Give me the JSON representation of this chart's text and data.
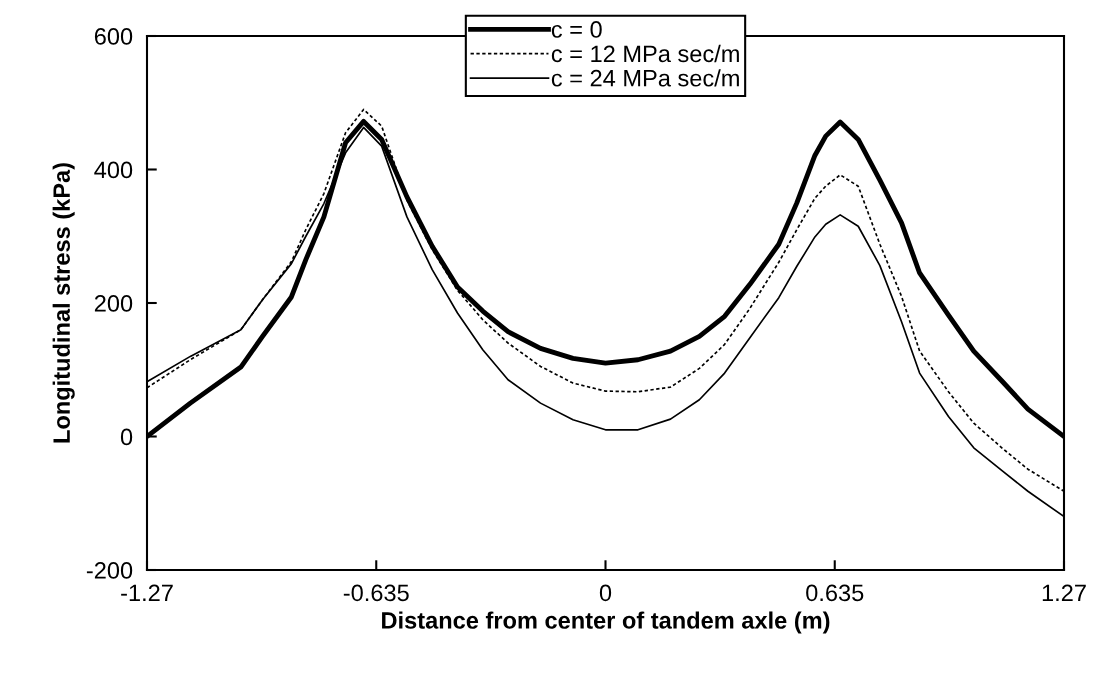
{
  "chart_data": {
    "type": "line",
    "xlabel": "Distance from center of tandem axle (m)",
    "ylabel": "Longitudinal stress (kPa)",
    "x": [
      -1.27,
      -1.15,
      -1.01,
      -0.95,
      -0.87,
      -0.83,
      -0.78,
      -0.72,
      -0.67,
      -0.62,
      -0.55,
      -0.48,
      -0.41,
      -0.34,
      -0.27,
      -0.18,
      -0.09,
      0,
      0.09,
      0.18,
      0.26,
      0.33,
      0.4,
      0.48,
      0.53,
      0.58,
      0.61,
      0.65,
      0.7,
      0.76,
      0.82,
      0.87,
      0.95,
      1.02,
      1.1,
      1.17,
      1.27
    ],
    "series": [
      {
        "name": "c = 0",
        "color": "#000000",
        "line_style": "solid",
        "values": [
          0,
          50,
          104,
          150,
          209,
          265,
          329,
          440,
          472,
          445,
          359,
          285,
          224,
          188,
          157,
          132,
          117,
          110,
          115,
          128,
          150,
          180,
          228,
          288,
          350,
          421,
          450,
          471,
          445,
          384,
          320,
          245,
          182,
          128,
          82,
          41,
          0
        ]
      },
      {
        "name": "c = 12 MPa sec/m",
        "color": "#000000",
        "line_style": "dotted",
        "values": [
          73,
          115,
          160,
          205,
          262,
          310,
          364,
          455,
          490,
          465,
          354,
          280,
          219,
          175,
          140,
          105,
          80,
          68,
          67,
          74,
          102,
          138,
          192,
          261,
          310,
          357,
          375,
          392,
          375,
          288,
          210,
          128,
          67,
          20,
          -18,
          -49,
          -82
        ]
      },
      {
        "name": "c = 24 MPa sec/m",
        "color": "#000000",
        "line_style": "solid",
        "values": [
          82,
          120,
          160,
          205,
          259,
          300,
          349,
          425,
          463,
          435,
          329,
          250,
          185,
          130,
          85,
          50,
          25,
          10,
          10,
          26,
          55,
          95,
          148,
          208,
          255,
          299,
          318,
          332,
          315,
          256,
          172,
          95,
          30,
          -17,
          -52,
          -82,
          -120
        ]
      }
    ],
    "xlim": [
      -1.27,
      1.27
    ],
    "xticks": [
      -1.27,
      -0.635,
      0,
      0.635,
      1.27
    ],
    "ylim": [
      -200,
      600
    ],
    "yticks": [
      -200,
      0,
      200,
      400,
      600
    ],
    "grid": false,
    "legend": "top",
    "marker": "none"
  }
}
